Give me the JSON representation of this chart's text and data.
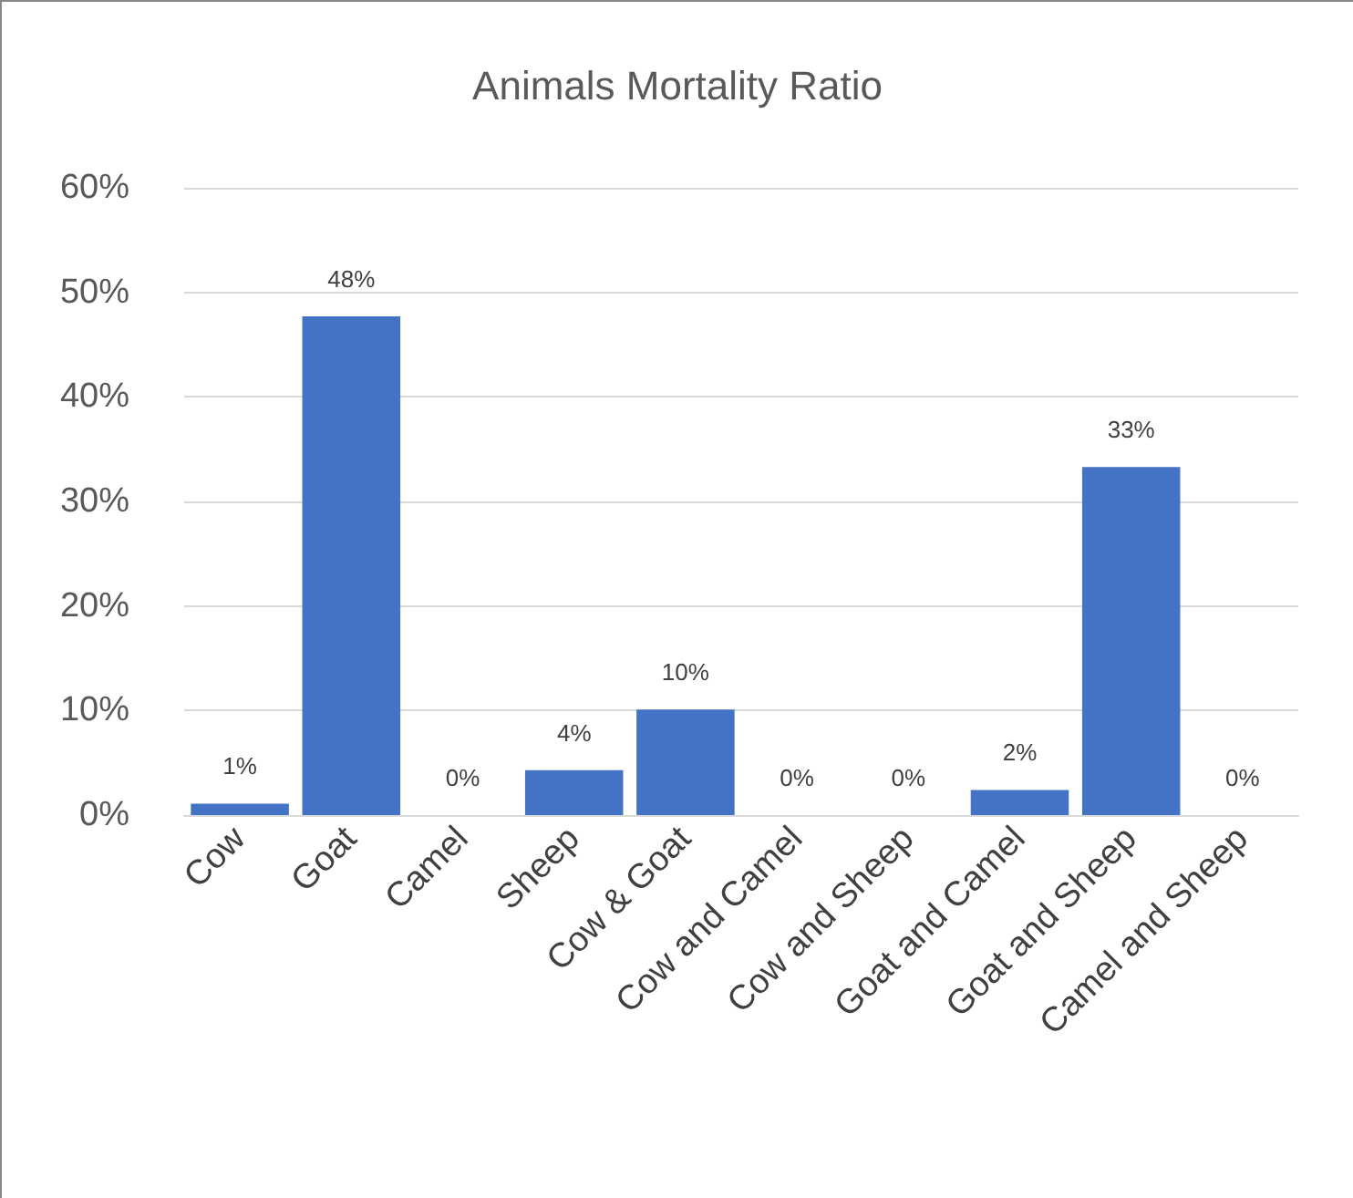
{
  "chart_data": {
    "type": "bar",
    "title": "Animals Mortality Ratio",
    "categories": [
      "Cow",
      "Goat",
      "Camel",
      "Sheep",
      "Cow & Goat",
      "Cow and Camel",
      "Cow and Sheep",
      "Goat and Camel",
      "Goat and Sheep",
      "Camel and Sheep"
    ],
    "values": [
      1.1,
      47.7,
      0,
      4.3,
      10.1,
      0,
      0,
      2.4,
      33.3,
      0
    ],
    "value_labels": [
      "1%",
      "48%",
      "0%",
      "4%",
      "10%",
      "0%",
      "0%",
      "2%",
      "33%",
      "0%"
    ],
    "color": "#4472c4",
    "ylim": [
      0,
      60
    ],
    "yticks": [
      {
        "value": 0,
        "label": "0%"
      },
      {
        "value": 10,
        "label": "10%"
      },
      {
        "value": 20,
        "label": "20%"
      },
      {
        "value": 30,
        "label": "30%"
      },
      {
        "value": 40,
        "label": "40%"
      },
      {
        "value": 50,
        "label": "50%"
      },
      {
        "value": 60,
        "label": "60%"
      }
    ],
    "grid": "y"
  }
}
